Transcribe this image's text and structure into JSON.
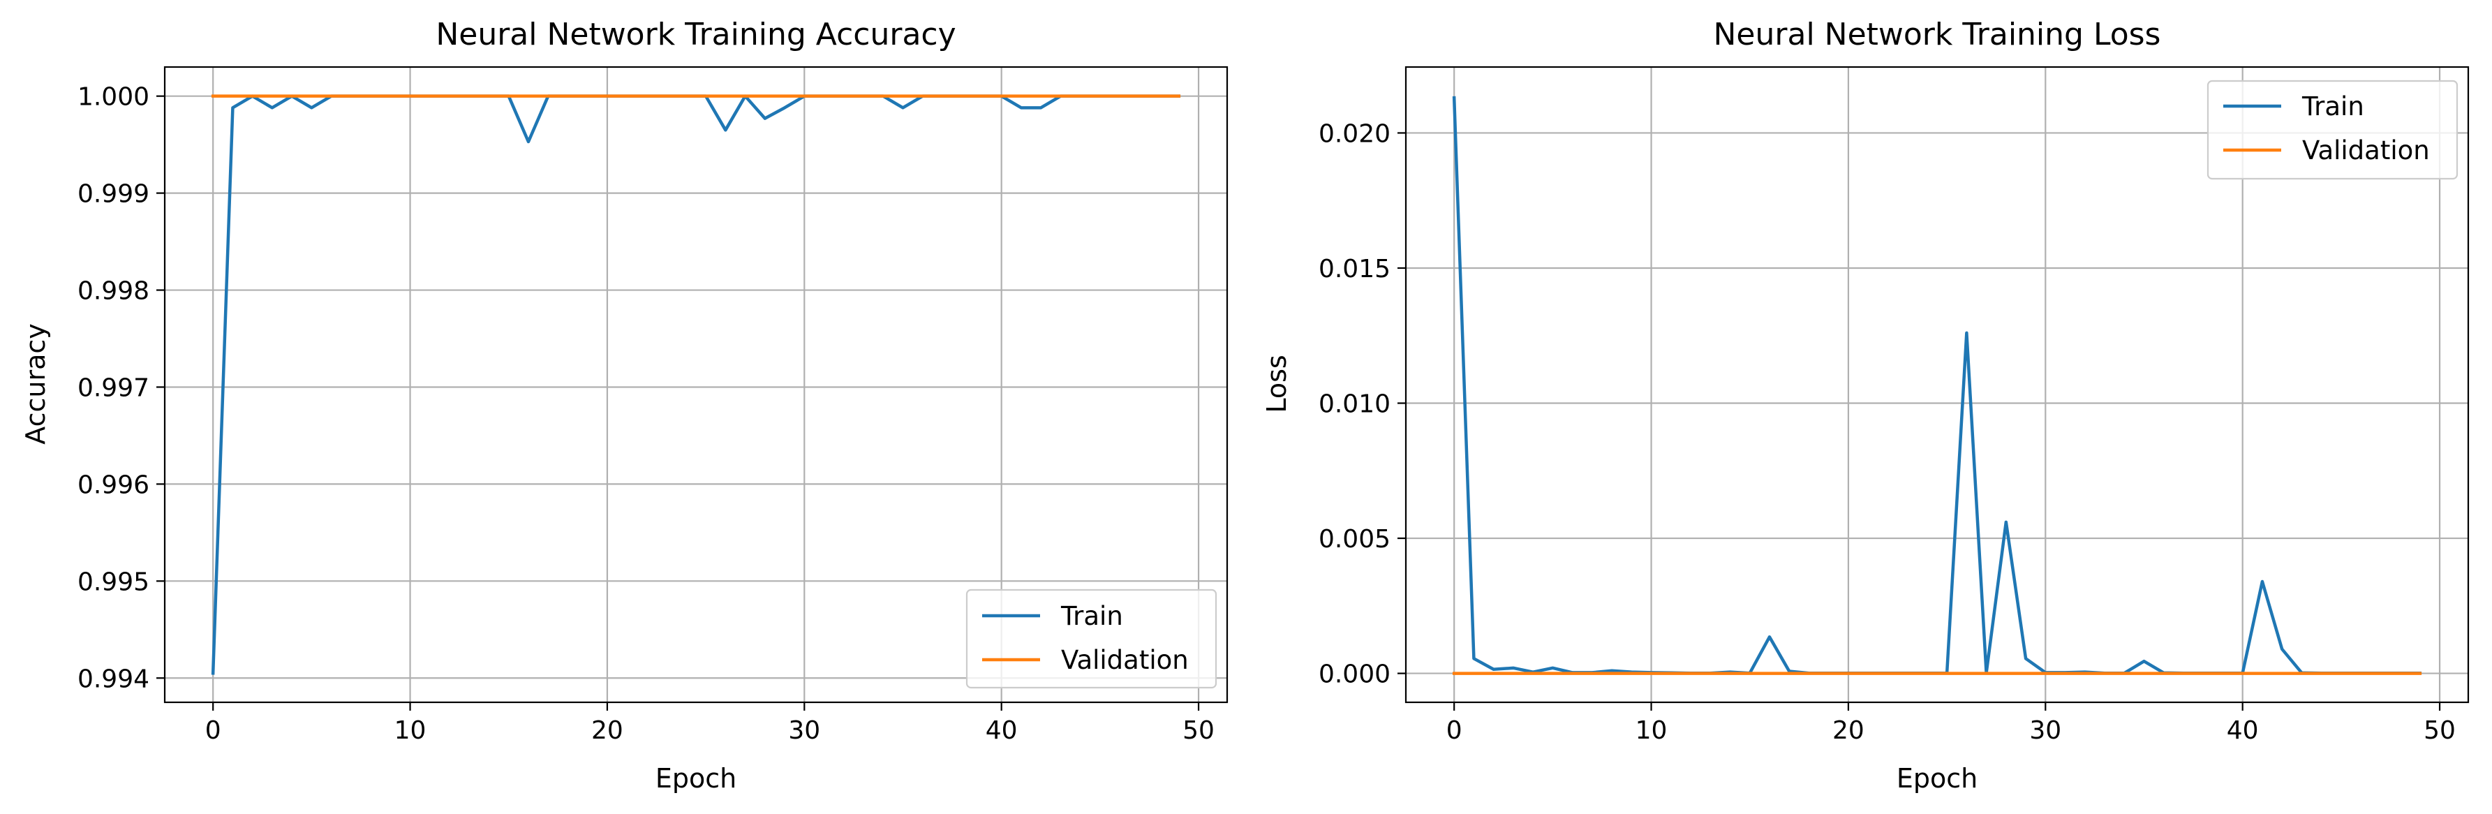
{
  "colors": {
    "train": "#1f77b4",
    "validation": "#ff7f0e"
  },
  "chart_data": [
    {
      "type": "line",
      "title": "Neural Network Training Accuracy",
      "xlabel": "Epoch",
      "ylabel": "Accuracy",
      "xlim": [
        -2.45,
        51.45
      ],
      "ylim": [
        0.99375,
        1.0003
      ],
      "xticks": [
        0,
        10,
        20,
        30,
        40,
        50
      ],
      "yticks": [
        0.994,
        0.995,
        0.996,
        0.997,
        0.998,
        0.999,
        1.0
      ],
      "xtick_labels": [
        "0",
        "10",
        "20",
        "30",
        "40",
        "50"
      ],
      "ytick_labels": [
        "0.994",
        "0.995",
        "0.996",
        "0.997",
        "0.998",
        "0.999",
        "1.000"
      ],
      "grid": true,
      "legend_position": "lower right",
      "x": [
        0,
        1,
        2,
        3,
        4,
        5,
        6,
        7,
        8,
        9,
        10,
        11,
        12,
        13,
        14,
        15,
        16,
        17,
        18,
        19,
        20,
        21,
        22,
        23,
        24,
        25,
        26,
        27,
        28,
        29,
        30,
        31,
        32,
        33,
        34,
        35,
        36,
        37,
        38,
        39,
        40,
        41,
        42,
        43,
        44,
        45,
        46,
        47,
        48,
        49
      ],
      "series": [
        {
          "name": "Train",
          "color_key": "train",
          "values": [
            0.99405,
            0.99988,
            1.0,
            0.99988,
            1.0,
            0.99988,
            1.0,
            1.0,
            1.0,
            1.0,
            1.0,
            1.0,
            1.0,
            1.0,
            1.0,
            1.0,
            0.99953,
            1.0,
            1.0,
            1.0,
            1.0,
            1.0,
            1.0,
            1.0,
            1.0,
            1.0,
            0.99965,
            1.0,
            0.99977,
            0.99988,
            1.0,
            1.0,
            1.0,
            1.0,
            1.0,
            0.99988,
            1.0,
            1.0,
            1.0,
            1.0,
            1.0,
            0.99988,
            0.99988,
            1.0,
            1.0,
            1.0,
            1.0,
            1.0,
            1.0,
            1.0
          ]
        },
        {
          "name": "Validation",
          "color_key": "validation",
          "values": [
            1.0,
            1.0,
            1.0,
            1.0,
            1.0,
            1.0,
            1.0,
            1.0,
            1.0,
            1.0,
            1.0,
            1.0,
            1.0,
            1.0,
            1.0,
            1.0,
            1.0,
            1.0,
            1.0,
            1.0,
            1.0,
            1.0,
            1.0,
            1.0,
            1.0,
            1.0,
            1.0,
            1.0,
            1.0,
            1.0,
            1.0,
            1.0,
            1.0,
            1.0,
            1.0,
            1.0,
            1.0,
            1.0,
            1.0,
            1.0,
            1.0,
            1.0,
            1.0,
            1.0,
            1.0,
            1.0,
            1.0,
            1.0,
            1.0,
            1.0
          ]
        }
      ]
    },
    {
      "type": "line",
      "title": "Neural Network Training Loss",
      "xlabel": "Epoch",
      "ylabel": "Loss",
      "xlim": [
        -2.45,
        51.45
      ],
      "ylim": [
        -0.00107,
        0.02244
      ],
      "xticks": [
        0,
        10,
        20,
        30,
        40,
        50
      ],
      "yticks": [
        0.0,
        0.005,
        0.01,
        0.015,
        0.02
      ],
      "xtick_labels": [
        "0",
        "10",
        "20",
        "30",
        "40",
        "50"
      ],
      "ytick_labels": [
        "0.000",
        "0.005",
        "0.010",
        "0.015",
        "0.020"
      ],
      "grid": true,
      "legend_position": "upper right",
      "x": [
        0,
        1,
        2,
        3,
        4,
        5,
        6,
        7,
        8,
        9,
        10,
        11,
        12,
        13,
        14,
        15,
        16,
        17,
        18,
        19,
        20,
        21,
        22,
        23,
        24,
        25,
        26,
        27,
        28,
        29,
        30,
        31,
        32,
        33,
        34,
        35,
        36,
        37,
        38,
        39,
        40,
        41,
        42,
        43,
        44,
        45,
        46,
        47,
        48,
        49
      ],
      "series": [
        {
          "name": "Train",
          "color_key": "train",
          "values": [
            0.0213,
            0.00055,
            0.00015,
            0.0002,
            5e-05,
            0.0002,
            3e-05,
            3e-05,
            0.0001,
            5e-05,
            3e-05,
            2e-05,
            1e-05,
            1e-05,
            5e-05,
            1e-05,
            0.00135,
            8e-05,
            1e-05,
            1e-05,
            1e-05,
            1e-05,
            1e-05,
            1e-05,
            1e-05,
            1e-05,
            0.0126,
            2e-05,
            0.0056,
            0.00055,
            3e-05,
            3e-05,
            5e-05,
            1e-05,
            1e-05,
            0.00045,
            2e-05,
            1e-05,
            1e-05,
            1e-05,
            1e-05,
            0.0034,
            0.0009,
            2e-05,
            1e-05,
            1e-05,
            1e-05,
            1e-05,
            1e-05,
            1e-05
          ]
        },
        {
          "name": "Validation",
          "color_key": "validation",
          "values": [
            0,
            0,
            0,
            0,
            0,
            0,
            0,
            0,
            0,
            0,
            0,
            0,
            0,
            0,
            0,
            0,
            0,
            0,
            0,
            0,
            0,
            0,
            0,
            0,
            0,
            0,
            0,
            0,
            0,
            0,
            0,
            0,
            0,
            0,
            0,
            0,
            0,
            0,
            0,
            0,
            0,
            0,
            0,
            0,
            0,
            0,
            0,
            0,
            0,
            0
          ]
        }
      ]
    }
  ]
}
